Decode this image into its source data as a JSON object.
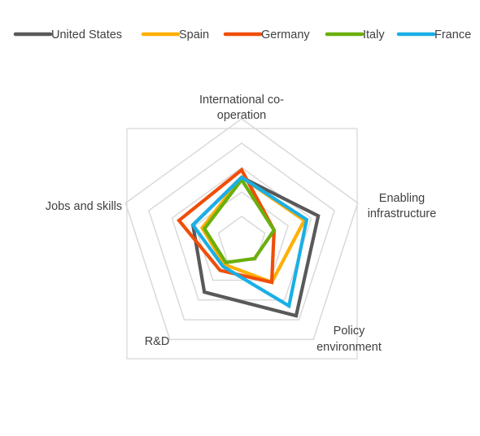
{
  "chart_data": {
    "type": "radar",
    "title": "",
    "axes": [
      "International co-operation",
      "Enabling infrastructure",
      "Policy environment",
      "R&D",
      "Jobs and skills"
    ],
    "axis_label_lines": [
      [
        "International co-",
        "operation"
      ],
      [
        "Enabling",
        "infrastructure"
      ],
      [
        "Policy",
        "environment"
      ],
      [
        "R&D"
      ],
      [
        "Jobs and skills"
      ]
    ],
    "grid_levels": 5,
    "rmax": 5,
    "frame_box": true,
    "legend_position": "top",
    "series": [
      {
        "name": "United States",
        "color": "#595959",
        "values": [
          2.6,
          3.3,
          3.8,
          2.6,
          2.1
        ]
      },
      {
        "name": "Spain",
        "color": "#FFB000",
        "values": [
          2.6,
          2.7,
          2.1,
          1.2,
          1.7
        ]
      },
      {
        "name": "Germany",
        "color": "#F04E09",
        "values": [
          2.9,
          1.4,
          2.1,
          1.5,
          2.7
        ]
      },
      {
        "name": "Italy",
        "color": "#6AAF0C",
        "values": [
          2.5,
          1.4,
          0.9,
          1.1,
          1.6
        ]
      },
      {
        "name": "France",
        "color": "#1AAFE6",
        "values": [
          2.6,
          2.8,
          3.3,
          1.3,
          2.1
        ]
      }
    ]
  }
}
